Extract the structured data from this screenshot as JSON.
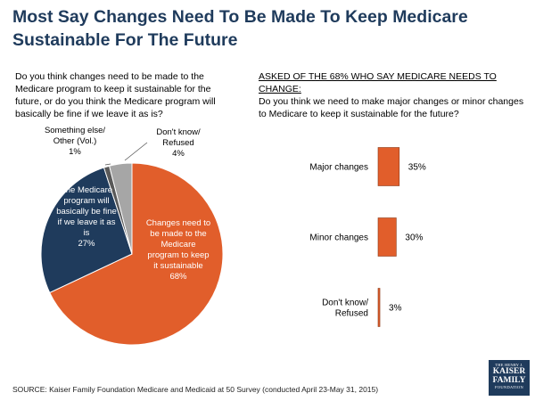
{
  "title": "Most Say Changes Need To Be Made To Keep Medicare Sustainable For The Future",
  "left_question": "Do you think changes need to be made to the Medicare program to keep it sustainable for the future, or do you think the Medicare program will basically be fine if we leave it as is?",
  "right_heading": "ASKED OF THE 68% WHO SAY MEDICARE NEEDS TO CHANGE:",
  "right_question": "Do you think we need to make major changes or minor changes to Medicare to keep it sustainable for the future?",
  "source": "SOURCE: Kaiser Family Foundation Medicare and Medicaid at 50 Survey (conducted April 23-May 31, 2015)",
  "logo": {
    "line1": "THE HENRY J.",
    "line2": "KAISER",
    "line3": "FAMILY",
    "line4": "FOUNDATION"
  },
  "colors": {
    "orange": "#e15e2b",
    "navy": "#1f3b5c",
    "gray": "#a6a6a6",
    "darkgray": "#595959",
    "title": "#1f3b5c"
  },
  "chart_data": [
    {
      "type": "pie",
      "slices": [
        {
          "label": "Changes need to be made to the Medicare program to keep it sustainable",
          "value": 68,
          "display": "68%",
          "color": "#e15e2b"
        },
        {
          "label": "The Medicare program will basically be fine if we leave it as is",
          "value": 27,
          "display": "27%",
          "color": "#1f3b5c"
        },
        {
          "label": "Something else/ Other (Vol.)",
          "value": 1,
          "display": "1%",
          "color": "#595959"
        },
        {
          "label": "Don't know/ Refused",
          "value": 4,
          "display": "4%",
          "color": "#a6a6a6"
        }
      ]
    },
    {
      "type": "bar",
      "orientation": "horizontal",
      "categories": [
        "Major changes",
        "Minor changes",
        "Don't know/ Refused"
      ],
      "values": [
        35,
        30,
        3
      ],
      "value_labels": [
        "35%",
        "30%",
        "3%"
      ],
      "color": "#e15e2b"
    }
  ]
}
